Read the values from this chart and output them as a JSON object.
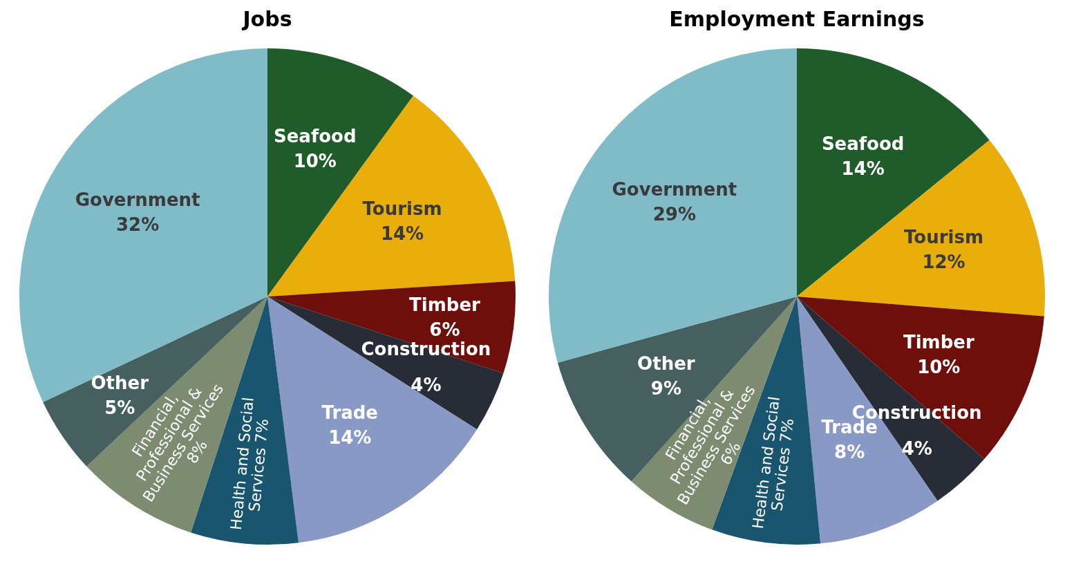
{
  "chart_data": [
    {
      "type": "pie",
      "title": "Jobs",
      "categories": [
        "Seafood",
        "Tourism",
        "Timber",
        "Construction",
        "Trade",
        "Health and Social Services",
        "Financial, Professional & Business Services",
        "Other",
        "Government"
      ],
      "values": [
        10,
        14,
        6,
        4,
        14,
        7,
        8,
        5,
        32
      ],
      "value_labels": [
        "10%",
        "14%",
        "6%",
        "4%",
        "14%",
        "7%",
        "8%",
        "5%",
        "32%"
      ],
      "colors": [
        "#1f5c2a",
        "#eaae0a",
        "#6e0f0b",
        "#272c36",
        "#8799c4",
        "#1a5570",
        "#7d8c70",
        "#465f5f",
        "#7fbcc8"
      ],
      "legend": false
    },
    {
      "type": "pie",
      "title": "Employment Earnings",
      "categories": [
        "Seafood",
        "Tourism",
        "Timber",
        "Construction",
        "Trade",
        "Health and Social Services",
        "Financial, Professional & Business Services",
        "Other",
        "Government"
      ],
      "values": [
        14,
        12,
        10,
        4,
        8,
        7,
        6,
        9,
        29
      ],
      "value_labels": [
        "14%",
        "12%",
        "10%",
        "4%",
        "8%",
        "7%",
        "6%",
        "9%",
        "29%"
      ],
      "colors": [
        "#1f5c2a",
        "#eaae0a",
        "#6e0f0b",
        "#272c36",
        "#8799c4",
        "#1a5570",
        "#7d8c70",
        "#465f5f",
        "#7fbcc8"
      ],
      "legend": false
    }
  ]
}
